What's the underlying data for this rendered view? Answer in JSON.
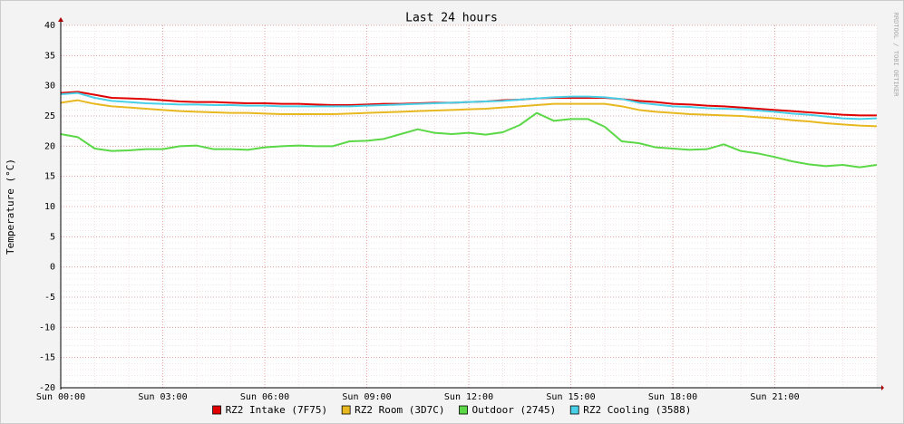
{
  "chart_data": {
    "type": "line",
    "title": "Last 24 hours",
    "y_label": "Temperature (°C)",
    "watermark": "RRDTOOL / TOBI OETIKER",
    "x": [
      0,
      0.5,
      1,
      1.5,
      2,
      2.5,
      3,
      3.5,
      4,
      4.5,
      5,
      5.5,
      6,
      6.5,
      7,
      7.5,
      8,
      8.5,
      9,
      9.5,
      10,
      10.5,
      11,
      11.5,
      12,
      12.5,
      13,
      13.5,
      14,
      14.5,
      15,
      15.5,
      16,
      16.5,
      17,
      17.5,
      18,
      18.5,
      19,
      19.5,
      20,
      20.5,
      21,
      21.5,
      22,
      22.5,
      23,
      23.5,
      24
    ],
    "series": [
      {
        "name": "RZ2 Intake (7F75)",
        "color": "#e00000",
        "values": [
          28.8,
          29.0,
          28.5,
          28.0,
          27.9,
          27.8,
          27.6,
          27.4,
          27.3,
          27.3,
          27.2,
          27.1,
          27.1,
          27.0,
          27.0,
          26.9,
          26.8,
          26.8,
          26.9,
          27.0,
          27.0,
          27.1,
          27.2,
          27.2,
          27.3,
          27.4,
          27.6,
          27.7,
          27.9,
          28.0,
          28.0,
          28.0,
          28.0,
          27.8,
          27.5,
          27.3,
          27.0,
          26.9,
          26.7,
          26.6,
          26.4,
          26.2,
          26.0,
          25.8,
          25.6,
          25.4,
          25.2,
          25.1,
          25.1
        ]
      },
      {
        "name": "RZ2 Room (3D7C)",
        "color": "#e8b820",
        "values": [
          27.2,
          27.6,
          27.0,
          26.6,
          26.4,
          26.2,
          26.0,
          25.8,
          25.7,
          25.6,
          25.5,
          25.5,
          25.4,
          25.3,
          25.3,
          25.3,
          25.3,
          25.4,
          25.5,
          25.6,
          25.7,
          25.8,
          25.9,
          26.0,
          26.1,
          26.2,
          26.4,
          26.6,
          26.8,
          27.0,
          27.0,
          27.0,
          27.0,
          26.6,
          26.0,
          25.7,
          25.5,
          25.3,
          25.2,
          25.1,
          25.0,
          24.8,
          24.6,
          24.3,
          24.1,
          23.8,
          23.6,
          23.4,
          23.3
        ]
      },
      {
        "name": "Outdoor (2745)",
        "color": "#5ad846",
        "values": [
          22.0,
          21.5,
          19.6,
          19.2,
          19.3,
          19.5,
          19.5,
          20.0,
          20.1,
          19.5,
          19.5,
          19.4,
          19.8,
          20.0,
          20.1,
          20.0,
          20.0,
          20.8,
          20.9,
          21.2,
          22.0,
          22.8,
          22.2,
          22.0,
          22.2,
          21.9,
          22.3,
          23.5,
          25.5,
          24.2,
          24.5,
          24.5,
          23.2,
          20.8,
          20.5,
          19.8,
          19.6,
          19.4,
          19.5,
          20.3,
          19.2,
          18.8,
          18.2,
          17.5,
          17.0,
          16.7,
          16.9,
          16.5,
          16.9
        ]
      },
      {
        "name": "RZ2 Cooling (3588)",
        "color": "#48d0e8",
        "values": [
          28.6,
          28.8,
          28.0,
          27.5,
          27.3,
          27.1,
          27.0,
          26.9,
          26.9,
          26.8,
          26.8,
          26.7,
          26.7,
          26.6,
          26.6,
          26.6,
          26.6,
          26.6,
          26.7,
          26.8,
          26.9,
          27.0,
          27.1,
          27.2,
          27.3,
          27.4,
          27.5,
          27.7,
          27.9,
          28.1,
          28.2,
          28.2,
          28.1,
          27.8,
          27.2,
          26.9,
          26.6,
          26.5,
          26.3,
          26.2,
          26.1,
          25.9,
          25.7,
          25.4,
          25.2,
          24.9,
          24.6,
          24.5,
          24.6
        ]
      }
    ],
    "xlim": [
      0,
      24
    ],
    "xticks": [
      {
        "value": 0,
        "label": "Sun 00:00"
      },
      {
        "value": 3,
        "label": "Sun 03:00"
      },
      {
        "value": 6,
        "label": "Sun 06:00"
      },
      {
        "value": 9,
        "label": "Sun 09:00"
      },
      {
        "value": 12,
        "label": "Sun 12:00"
      },
      {
        "value": 15,
        "label": "Sun 15:00"
      },
      {
        "value": 18,
        "label": "Sun 18:00"
      },
      {
        "value": 21,
        "label": "Sun 21:00"
      }
    ],
    "ylim": [
      -20,
      40
    ],
    "yticks": [
      -20,
      -15,
      -10,
      -5,
      0,
      5,
      10,
      15,
      20,
      25,
      30,
      35,
      40
    ],
    "grid": true,
    "minor_grid": true,
    "legend": "bottom"
  }
}
